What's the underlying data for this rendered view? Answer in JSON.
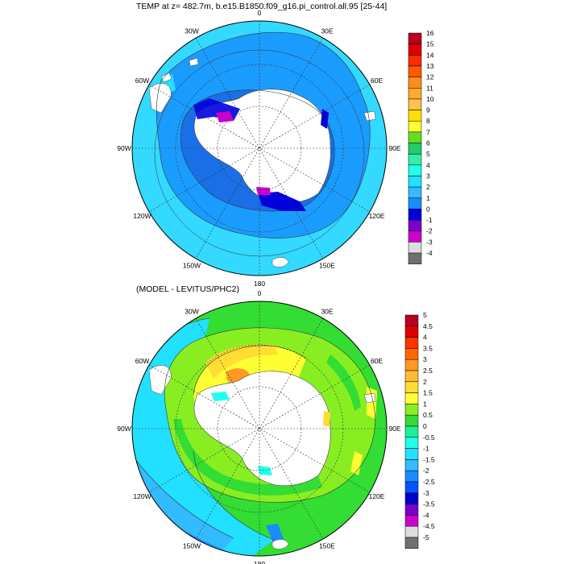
{
  "top_panel": {
    "title": "TEMP at z= 482.7m, b.e15.B1850.f09_g16.pi_control.all.95 [25-44]",
    "lon_labels": [
      "0",
      "30E",
      "60E",
      "90E",
      "120E",
      "150E",
      "180",
      "150W",
      "120W",
      "90W",
      "60W",
      "30W"
    ],
    "colorbar": {
      "levels": [
        "16",
        "15",
        "14",
        "13",
        "12",
        "11",
        "10",
        "9",
        "8",
        "7",
        "6",
        "5",
        "4",
        "3",
        "2",
        "1",
        "0",
        "-1",
        "-2",
        "-3",
        "-4"
      ],
      "colors": [
        "#b8001f",
        "#dd0000",
        "#ff2a00",
        "#ff5a00",
        "#ff8c1a",
        "#ffaa33",
        "#ffc04d",
        "#ffe000",
        "#ffff33",
        "#66dd22",
        "#22cc66",
        "#33eeaa",
        "#22ffee",
        "#22e0ff",
        "#33bbff",
        "#1a8cff",
        "#0000dd",
        "#7a00cc",
        "#cc00cc",
        "#dddddd",
        "#707070"
      ]
    }
  },
  "bottom_panel": {
    "title": "(MODEL - LEVITUS/PHC2)",
    "lon_labels": [
      "0",
      "30E",
      "60E",
      "90E",
      "120E",
      "150E",
      "180",
      "150W",
      "120W",
      "90W",
      "60W",
      "30W"
    ],
    "colorbar": {
      "levels": [
        "5",
        "4.5",
        "4",
        "3.5",
        "3",
        "2.5",
        "2",
        "1.5",
        "1",
        "0.5",
        "0",
        "-0.5",
        "-1",
        "-1.5",
        "-2",
        "-2.5",
        "-3",
        "-3.5",
        "-4",
        "-4.5",
        "-5"
      ],
      "colors": [
        "#b8001f",
        "#dd0000",
        "#ff3300",
        "#ff6600",
        "#ff9922",
        "#ffbb33",
        "#ffdd33",
        "#ffff33",
        "#88ee22",
        "#33dd33",
        "#22ee99",
        "#22ffee",
        "#22e0ff",
        "#33bbff",
        "#1a8cff",
        "#0055ff",
        "#0000cc",
        "#7a00cc",
        "#cc00cc",
        "#dddddd",
        "#707070"
      ]
    }
  }
}
